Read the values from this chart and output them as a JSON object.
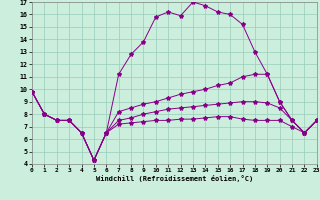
{
  "xlabel": "Windchill (Refroidissement éolien,°C)",
  "background_color": "#cceedd",
  "grid_color": "#99ccbb",
  "line_color": "#880088",
  "xlim": [
    0,
    23
  ],
  "ylim": [
    4,
    17
  ],
  "yticks": [
    4,
    5,
    6,
    7,
    8,
    9,
    10,
    11,
    12,
    13,
    14,
    15,
    16,
    17
  ],
  "xticks": [
    0,
    1,
    2,
    3,
    4,
    5,
    6,
    7,
    8,
    9,
    10,
    11,
    12,
    13,
    14,
    15,
    16,
    17,
    18,
    19,
    20,
    21,
    22,
    23
  ],
  "lines": [
    {
      "x": [
        0,
        1,
        2,
        3,
        4,
        5,
        6,
        7,
        8,
        9,
        10,
        11,
        12,
        13,
        14,
        15,
        16,
        17,
        18,
        19,
        20,
        21,
        22,
        23
      ],
      "y": [
        9.8,
        8.0,
        7.5,
        7.5,
        6.5,
        4.3,
        6.5,
        11.2,
        12.8,
        13.8,
        15.8,
        16.2,
        15.9,
        17.0,
        16.7,
        16.2,
        16.0,
        15.2,
        13.0,
        11.2,
        9.0,
        7.5,
        6.5,
        7.5
      ]
    },
    {
      "x": [
        0,
        1,
        2,
        3,
        4,
        5,
        6,
        7,
        8,
        9,
        10,
        11,
        12,
        13,
        14,
        15,
        16,
        17,
        18,
        19,
        20,
        21,
        22,
        23
      ],
      "y": [
        9.8,
        8.0,
        7.5,
        7.5,
        6.5,
        4.3,
        6.5,
        8.2,
        8.5,
        8.8,
        9.0,
        9.3,
        9.6,
        9.8,
        10.0,
        10.3,
        10.5,
        11.0,
        11.2,
        11.2,
        9.0,
        7.5,
        6.5,
        7.5
      ]
    },
    {
      "x": [
        0,
        1,
        2,
        3,
        4,
        5,
        6,
        7,
        8,
        9,
        10,
        11,
        12,
        13,
        14,
        15,
        16,
        17,
        18,
        19,
        20,
        21,
        22,
        23
      ],
      "y": [
        9.8,
        8.0,
        7.5,
        7.5,
        6.5,
        4.3,
        6.5,
        7.5,
        7.7,
        8.0,
        8.2,
        8.4,
        8.5,
        8.6,
        8.7,
        8.8,
        8.9,
        9.0,
        9.0,
        8.9,
        8.5,
        7.5,
        6.5,
        7.5
      ]
    },
    {
      "x": [
        0,
        1,
        2,
        3,
        4,
        5,
        6,
        7,
        8,
        9,
        10,
        11,
        12,
        13,
        14,
        15,
        16,
        17,
        18,
        19,
        20,
        21,
        22,
        23
      ],
      "y": [
        9.8,
        8.0,
        7.5,
        7.5,
        6.5,
        4.3,
        6.5,
        7.2,
        7.3,
        7.4,
        7.5,
        7.5,
        7.6,
        7.6,
        7.7,
        7.8,
        7.8,
        7.6,
        7.5,
        7.5,
        7.5,
        7.0,
        6.5,
        7.5
      ]
    }
  ]
}
